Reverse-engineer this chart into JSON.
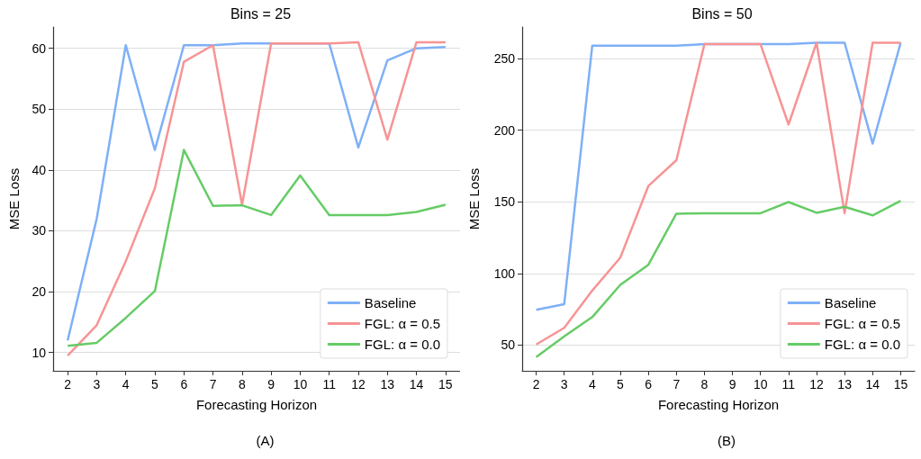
{
  "chart_data": [
    {
      "type": "line",
      "title": "Bins = 25",
      "xlabel": "Forecasting Horizon",
      "ylabel": "MSE Loss",
      "annotations": [
        "(A)"
      ],
      "categories": [
        "2",
        "3",
        "4",
        "5",
        "6",
        "7",
        "8",
        "9",
        "10",
        "11",
        "12",
        "13",
        "14",
        "15"
      ],
      "ylim": [
        7,
        63.5
      ],
      "yticks": [
        10,
        20,
        30,
        40,
        50,
        60
      ],
      "grid": "y",
      "legend": "bottom right",
      "marker": "none",
      "line_style": "solid",
      "series": [
        {
          "name": "Baseline",
          "color": "#7eb0f7",
          "values": [
            12,
            32,
            60.5,
            43.3,
            60.5,
            60.5,
            60.8,
            60.8,
            60.8,
            60.8,
            43.7,
            58,
            60,
            60.2
          ]
        },
        {
          "name": "FGL: α = 0.5",
          "color": "#f79494",
          "values": [
            9.5,
            14.5,
            25,
            37,
            57.8,
            60.5,
            34.3,
            60.8,
            60.8,
            60.8,
            61,
            45,
            61,
            61
          ]
        },
        {
          "name": "FGL: α = 0.0",
          "color": "#66cc66",
          "values": [
            11.1,
            11.6,
            15.7,
            20.1,
            43.3,
            34.1,
            34.2,
            32.6,
            39.1,
            32.6,
            32.6,
            32.6,
            33.1,
            34.3
          ]
        }
      ]
    },
    {
      "type": "line",
      "title": "Bins = 50",
      "xlabel": "Forecasting Horizon",
      "ylabel": "MSE Loss",
      "annotations": [
        "(B)"
      ],
      "categories": [
        "2",
        "3",
        "4",
        "5",
        "6",
        "7",
        "8",
        "9",
        "10",
        "11",
        "12",
        "13",
        "14",
        "15"
      ],
      "ylim": [
        32,
        272
      ],
      "yticks": [
        50,
        100,
        150,
        200,
        250
      ],
      "grid": "y",
      "legend": "bottom right",
      "marker": "none",
      "line_style": "solid",
      "series": [
        {
          "name": "Baseline",
          "color": "#7eb0f7",
          "values": [
            74.6,
            78.5,
            259,
            259,
            259,
            259,
            260,
            260,
            260,
            260,
            261,
            261,
            190.6,
            261
          ]
        },
        {
          "name": "FGL: α = 0.5",
          "color": "#f79494",
          "values": [
            50.4,
            62,
            88,
            111,
            161,
            179,
            260,
            260,
            260,
            204,
            261,
            142,
            261,
            261
          ]
        },
        {
          "name": "FGL: α = 0.0",
          "color": "#66cc66",
          "values": [
            41.6,
            56,
            69.5,
            92,
            106,
            141.7,
            142,
            142,
            142,
            149.8,
            142.3,
            146.5,
            140.5,
            150.6
          ]
        }
      ]
    }
  ]
}
